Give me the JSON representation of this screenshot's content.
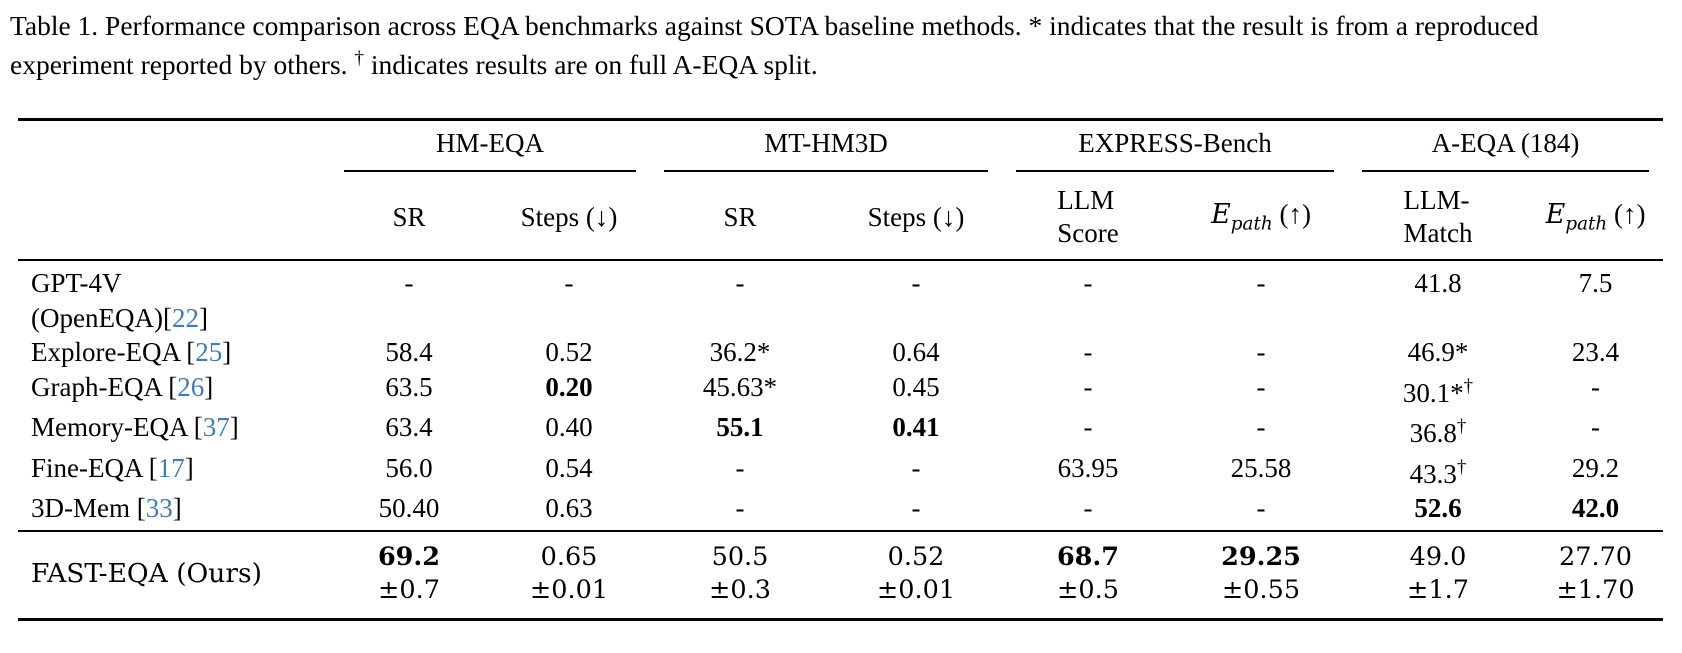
{
  "colors": {
    "citation_blue": "#3d7dbe",
    "text": "#000000",
    "rule": "#000000"
  },
  "caption": {
    "line1": "Table 1. Performance comparison across EQA benchmarks against SOTA baseline methods. * indicates that the result is from a reproduced",
    "line2_pre": "experiment reported by others. ",
    "dagger": "†",
    "line2_post": " indicates results are on full A-EQA split."
  },
  "table": {
    "groups": [
      {
        "label": "HM-EQA"
      },
      {
        "label": "MT-HM3D"
      },
      {
        "label": "EXPRESS-Bench"
      },
      {
        "label": "A-EQA (184)"
      }
    ],
    "subcols": [
      {
        "label": "SR"
      },
      {
        "label": "Steps (↓)"
      },
      {
        "label": "SR"
      },
      {
        "label": "Steps (↓)"
      },
      {
        "line1": "LLM",
        "line2": "Score"
      },
      {
        "math": "E",
        "sub": "path",
        "rest": "(↑)"
      },
      {
        "line1": "LLM-",
        "line2": "Match"
      },
      {
        "math": "E",
        "sub": "path",
        "rest": "(↑)"
      }
    ],
    "rows": [
      {
        "method": [
          [
            {
              "t": "GPT-4V"
            }
          ],
          [
            {
              "t": "(OpenEQA)["
            },
            {
              "t": "22",
              "cite": true
            },
            {
              "t": "]"
            }
          ]
        ],
        "cells": [
          {
            "v": "-"
          },
          {
            "v": "-"
          },
          {
            "v": "-"
          },
          {
            "v": "-"
          },
          {
            "v": "-"
          },
          {
            "v": "-"
          },
          {
            "v": "41.8"
          },
          {
            "v": "7.5"
          }
        ]
      },
      {
        "method": [
          [
            {
              "t": "Explore-EQA ["
            },
            {
              "t": "25",
              "cite": true
            },
            {
              "t": "]"
            }
          ]
        ],
        "cells": [
          {
            "v": "58.4"
          },
          {
            "v": "0.52"
          },
          {
            "v": "36.2*"
          },
          {
            "v": "0.64"
          },
          {
            "v": "-"
          },
          {
            "v": "-"
          },
          {
            "v": "46.9*"
          },
          {
            "v": "23.4"
          }
        ]
      },
      {
        "method": [
          [
            {
              "t": "Graph-EQA ["
            },
            {
              "t": "26",
              "cite": true
            },
            {
              "t": "]"
            }
          ]
        ],
        "cells": [
          {
            "v": "63.5"
          },
          {
            "v": "0.20",
            "b": true
          },
          {
            "v": "45.63*"
          },
          {
            "v": "0.45"
          },
          {
            "v": "-"
          },
          {
            "v": "-"
          },
          {
            "v": "30.1*",
            "sup": "†"
          },
          {
            "v": "-"
          }
        ]
      },
      {
        "method": [
          [
            {
              "t": "Memory-EQA ["
            },
            {
              "t": "37",
              "cite": true
            },
            {
              "t": "]"
            }
          ]
        ],
        "cells": [
          {
            "v": "63.4"
          },
          {
            "v": "0.40"
          },
          {
            "v": "55.1",
            "b": true
          },
          {
            "v": "0.41",
            "b": true
          },
          {
            "v": "-"
          },
          {
            "v": "-"
          },
          {
            "v": "36.8",
            "sup": "†"
          },
          {
            "v": "-"
          }
        ]
      },
      {
        "method": [
          [
            {
              "t": "Fine-EQA ["
            },
            {
              "t": "17",
              "cite": true
            },
            {
              "t": "]"
            }
          ]
        ],
        "cells": [
          {
            "v": "56.0"
          },
          {
            "v": "0.54"
          },
          {
            "v": "-"
          },
          {
            "v": "-"
          },
          {
            "v": "63.95"
          },
          {
            "v": "25.58"
          },
          {
            "v": "43.3",
            "sup": "†"
          },
          {
            "v": "29.2"
          }
        ]
      },
      {
        "method": [
          [
            {
              "t": "3D-Mem ["
            },
            {
              "t": "33",
              "cite": true
            },
            {
              "t": "]"
            }
          ]
        ],
        "cells": [
          {
            "v": "50.40"
          },
          {
            "v": "0.63"
          },
          {
            "v": "-"
          },
          {
            "v": "-"
          },
          {
            "v": "-"
          },
          {
            "v": "-"
          },
          {
            "v": "52.6",
            "b": true
          },
          {
            "v": "42.0",
            "b": true
          }
        ]
      }
    ],
    "ours": {
      "method": "FAST-EQA (Ours)",
      "cells": [
        {
          "v": "69.2",
          "b": true,
          "pm": "±0.7"
        },
        {
          "v": "0.65",
          "pm": "±0.01"
        },
        {
          "v": "50.5",
          "pm": "±0.3"
        },
        {
          "v": "0.52",
          "pm": "±0.01"
        },
        {
          "v": "68.7",
          "b": true,
          "pm": "±0.5"
        },
        {
          "v": "29.25",
          "b": true,
          "pm": "±0.55"
        },
        {
          "v": "49.0",
          "pm": "±1.7"
        },
        {
          "v": "27.70",
          "pm": "±1.70"
        }
      ]
    }
  }
}
